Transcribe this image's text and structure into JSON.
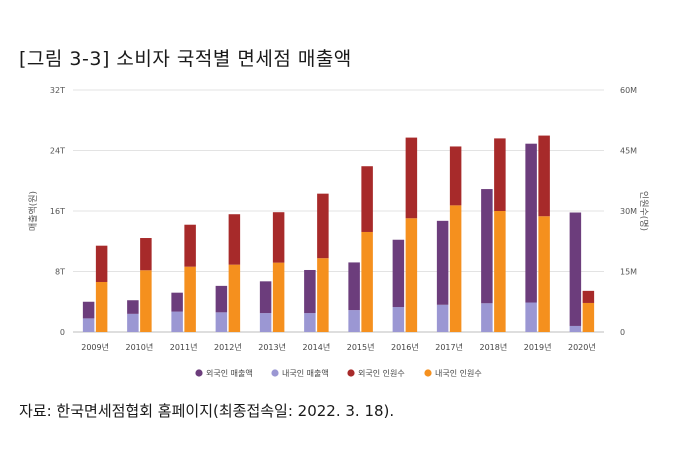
{
  "figure": {
    "title": "[그림 3-3] 소비자 국적별 면세점 매출액",
    "source": "자료: 한국면세점협회 홈페이지(최종접속일: 2022. 3. 18)."
  },
  "chart_data": {
    "type": "bar",
    "categories": [
      "2009년",
      "2010년",
      "2011년",
      "2012년",
      "2013년",
      "2014년",
      "2015년",
      "2016년",
      "2017년",
      "2018년",
      "2019년",
      "2020년"
    ],
    "ylabel": "매출액(원)",
    "ylabel2": "인원수(명)",
    "ylim": [
      0,
      32
    ],
    "ylim2": [
      0,
      60
    ],
    "yticks": [
      "0",
      "8T",
      "16T",
      "24T",
      "32T"
    ],
    "yticks2": [
      "0",
      "15M",
      "30M",
      "45M",
      "60M"
    ],
    "legend_position": "bottom",
    "stack_groups": [
      {
        "axis": "left",
        "series": [
          {
            "name": "내국인 매출액",
            "color": "#9b97d3",
            "values": [
              1.8,
              2.4,
              2.7,
              2.6,
              2.5,
              2.5,
              2.9,
              3.3,
              3.6,
              3.8,
              3.9,
              0.8
            ]
          },
          {
            "name": "외국인 매출액",
            "color": "#6c3d7c",
            "values": [
              2.2,
              1.8,
              2.5,
              3.5,
              4.2,
              5.7,
              6.3,
              8.9,
              11.1,
              15.1,
              21.0,
              15.0
            ]
          }
        ]
      },
      {
        "axis": "right",
        "series": [
          {
            "name": "내국인 인원수",
            "color": "#f5901e",
            "values": [
              12.4,
              15.3,
              16.2,
              16.7,
              17.2,
              18.3,
              24.8,
              28.2,
              31.4,
              30.0,
              28.7,
              7.2
            ]
          },
          {
            "name": "외국인 인원수",
            "color": "#a72a2a",
            "values": [
              9.0,
              8.0,
              10.4,
              12.5,
              12.5,
              16.0,
              16.3,
              20.0,
              14.6,
              18.0,
              20.0,
              3.0
            ]
          }
        ]
      }
    ],
    "legend": [
      {
        "name": "외국인 매출액",
        "color": "#6c3d7c"
      },
      {
        "name": "내국인 매출액",
        "color": "#9b97d3"
      },
      {
        "name": "외국인 인원수",
        "color": "#a72a2a"
      },
      {
        "name": "내국인 인원수",
        "color": "#f5901e"
      }
    ]
  }
}
